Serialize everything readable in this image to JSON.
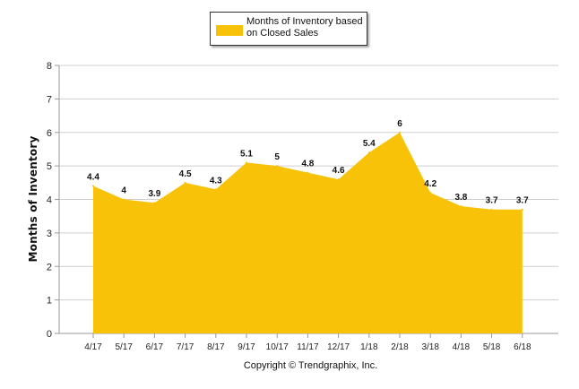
{
  "chart_data": {
    "type": "area",
    "categories": [
      "4/17",
      "5/17",
      "6/17",
      "7/17",
      "8/17",
      "9/17",
      "10/17",
      "11/17",
      "12/17",
      "1/18",
      "2/18",
      "3/18",
      "4/18",
      "5/18",
      "6/18"
    ],
    "series": [
      {
        "name": "Months of Inventory based on Closed Sales",
        "values": [
          4.4,
          4,
          3.9,
          4.5,
          4.3,
          5.1,
          5,
          4.8,
          4.6,
          5.4,
          6,
          4.2,
          3.8,
          3.7,
          3.7
        ],
        "labels": [
          "4.4",
          "4",
          "3.9",
          "4.5",
          "4.3",
          "5.1",
          "5",
          "4.8",
          "4.6",
          "5.4",
          "6",
          "4.2",
          "3.8",
          "3.7",
          "3.7"
        ],
        "color": "#F7C208"
      }
    ],
    "ylabel": "Months of Inventory",
    "xlabel": "",
    "ylim": [
      0,
      8
    ],
    "yticks": [
      "0",
      "1",
      "2",
      "3",
      "4",
      "5",
      "6",
      "7",
      "8"
    ],
    "grid": true,
    "legend_position": "top-center"
  },
  "legend": {
    "label": "Months of Inventory based on Closed Sales",
    "color": "#F7C208"
  },
  "footer": {
    "credit": "Copyright © Trendgraphix, Inc."
  }
}
